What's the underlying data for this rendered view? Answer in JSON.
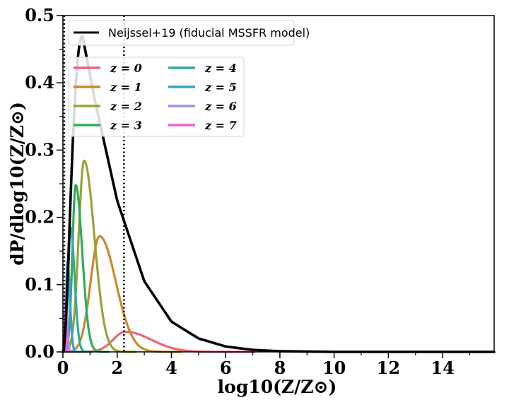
{
  "chart_data": {
    "type": "line",
    "title": "",
    "xlabel": "log10(Z/Z⊙)",
    "ylabel": "dP/dlog10(Z/Z⊙)",
    "xlim": [
      0,
      15.9
    ],
    "ylim": [
      0,
      0.5
    ],
    "x_ticks": [
      "0",
      "2",
      "4",
      "6",
      "8",
      "10",
      "12",
      "14"
    ],
    "y_ticks": [
      "0.0",
      "0.1",
      "0.2",
      "0.3",
      "0.4",
      "0.5"
    ],
    "grid": false,
    "legend_main": {
      "label": "Neijssel+19 (fiducial MSSFR model)",
      "placement": "top-left",
      "color": "#000000"
    },
    "legend_z": {
      "placement": "upper-left",
      "columns": 2
    },
    "vlines": [
      {
        "x": 0.05,
        "style": "dotted",
        "color": "#000000"
      },
      {
        "x": 2.25,
        "style": "dotted",
        "color": "#000000"
      }
    ],
    "series": [
      {
        "name": "Neijssel+19 (fiducial MSSFR model)",
        "kind": "black",
        "color": "#000000",
        "x_peak": 0.72,
        "y_peak": 0.47,
        "x_end": 15.9,
        "control_points": [
          [
            0.72,
            0.47
          ],
          [
            1.2,
            0.37
          ],
          [
            2.0,
            0.225
          ],
          [
            3.0,
            0.105
          ],
          [
            4.0,
            0.045
          ],
          [
            5.0,
            0.02
          ],
          [
            6.0,
            0.008
          ],
          [
            7.0,
            0.003
          ],
          [
            8.0,
            0.001
          ],
          [
            10.0,
            0.0
          ]
        ]
      },
      {
        "name": "z = 0",
        "label": "z = 0",
        "color": "#e8687d",
        "x_peak": 2.3,
        "y_peak": 0.03,
        "sigma_left": 0.45,
        "sigma_right": 0.95
      },
      {
        "name": "z = 1",
        "label": "z = 1",
        "color": "#c98a2e",
        "x_peak": 1.35,
        "y_peak": 0.172,
        "sigma_left": 0.33,
        "sigma_right": 0.6
      },
      {
        "name": "z = 2",
        "label": "z = 2",
        "color": "#99a33b",
        "x_peak": 0.78,
        "y_peak": 0.284,
        "sigma_left": 0.2,
        "sigma_right": 0.38
      },
      {
        "name": "z = 3",
        "label": "z = 3",
        "color": "#33aa5e",
        "x_peak": 0.47,
        "y_peak": 0.248,
        "sigma_left": 0.12,
        "sigma_right": 0.24
      },
      {
        "name": "z = 4",
        "label": "z = 4",
        "color": "#35a99a",
        "x_peak": 0.28,
        "y_peak": 0.185,
        "sigma_left": 0.08,
        "sigma_right": 0.15
      },
      {
        "name": "z = 5",
        "label": "z = 5",
        "color": "#36a1d0",
        "x_peak": 0.17,
        "y_peak": 0.135,
        "sigma_left": 0.05,
        "sigma_right": 0.09
      },
      {
        "name": "z = 6",
        "label": "z = 6",
        "color": "#a48ee6",
        "x_peak": 0.1,
        "y_peak": 0.09,
        "sigma_left": 0.03,
        "sigma_right": 0.055
      },
      {
        "name": "z = 7",
        "label": "z = 7",
        "color": "#ea61d6",
        "x_peak": 0.06,
        "y_peak": 0.06,
        "sigma_left": 0.02,
        "sigma_right": 0.035
      }
    ]
  }
}
